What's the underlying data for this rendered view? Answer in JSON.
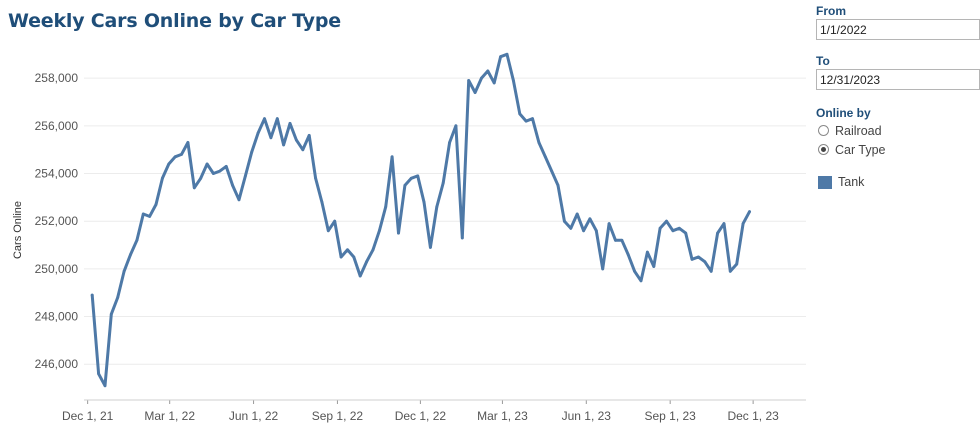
{
  "chart_data": {
    "type": "line",
    "title": "Weekly Cars Online by Car Type",
    "ylabel": "Cars Online",
    "xlabel": "",
    "x_start": "2021-12-06",
    "x_step_days": 7,
    "xlim": [
      "2021-11-27",
      "2024-01-28"
    ],
    "ylim": [
      244500,
      259600
    ],
    "y_ticks": [
      246000,
      248000,
      250000,
      252000,
      254000,
      256000,
      258000
    ],
    "y_tick_labels": [
      "246,000",
      "248,000",
      "250,000",
      "252,000",
      "254,000",
      "256,000",
      "258,000"
    ],
    "x_ticks": [
      {
        "date": "2021-12-01",
        "label": "Dec 1, 21"
      },
      {
        "date": "2022-03-01",
        "label": "Mar 1, 22"
      },
      {
        "date": "2022-06-01",
        "label": "Jun 1, 22"
      },
      {
        "date": "2022-09-01",
        "label": "Sep 1, 22"
      },
      {
        "date": "2022-12-01",
        "label": "Dec 1, 22"
      },
      {
        "date": "2023-03-01",
        "label": "Mar 1, 23"
      },
      {
        "date": "2023-06-01",
        "label": "Jun 1, 23"
      },
      {
        "date": "2023-09-01",
        "label": "Sep 1, 23"
      },
      {
        "date": "2023-12-01",
        "label": "Dec 1, 23"
      }
    ],
    "grid": true,
    "series": [
      {
        "name": "Tank",
        "color": "#4e79a7",
        "values": [
          248900,
          245600,
          245100,
          248100,
          248800,
          249900,
          250600,
          251200,
          252300,
          252200,
          252700,
          253800,
          254400,
          254700,
          254800,
          255300,
          253400,
          253800,
          254400,
          254000,
          254100,
          254300,
          253500,
          252900,
          253900,
          254900,
          255700,
          256300,
          255500,
          256300,
          255200,
          256100,
          255400,
          255000,
          255600,
          253800,
          252800,
          251600,
          252000,
          250500,
          250800,
          250500,
          249700,
          250300,
          250800,
          251600,
          252600,
          254700,
          251500,
          253500,
          253800,
          253900,
          252800,
          250900,
          252600,
          253600,
          255300,
          256000,
          251300,
          257900,
          257400,
          258000,
          258300,
          257800,
          258900,
          259000,
          257900,
          256500,
          256200,
          256300,
          255300,
          254700,
          254100,
          253500,
          252000,
          251700,
          252300,
          251600,
          252100,
          251600,
          250000,
          251900,
          251200,
          251200,
          250600,
          249900,
          249500,
          250700,
          250100,
          251700,
          252000,
          251600,
          251700,
          251500,
          250400,
          250500,
          250300,
          249900,
          251500,
          251900,
          249900,
          250200,
          251900,
          252400
        ]
      }
    ],
    "legend_placement": "right"
  },
  "controls": {
    "from_label": "From",
    "from_value": "1/1/2022",
    "to_label": "To",
    "to_value": "12/31/2023",
    "online_by_label": "Online by",
    "options": [
      {
        "label": "Railroad",
        "checked": false
      },
      {
        "label": "Car Type",
        "checked": true
      }
    ]
  }
}
